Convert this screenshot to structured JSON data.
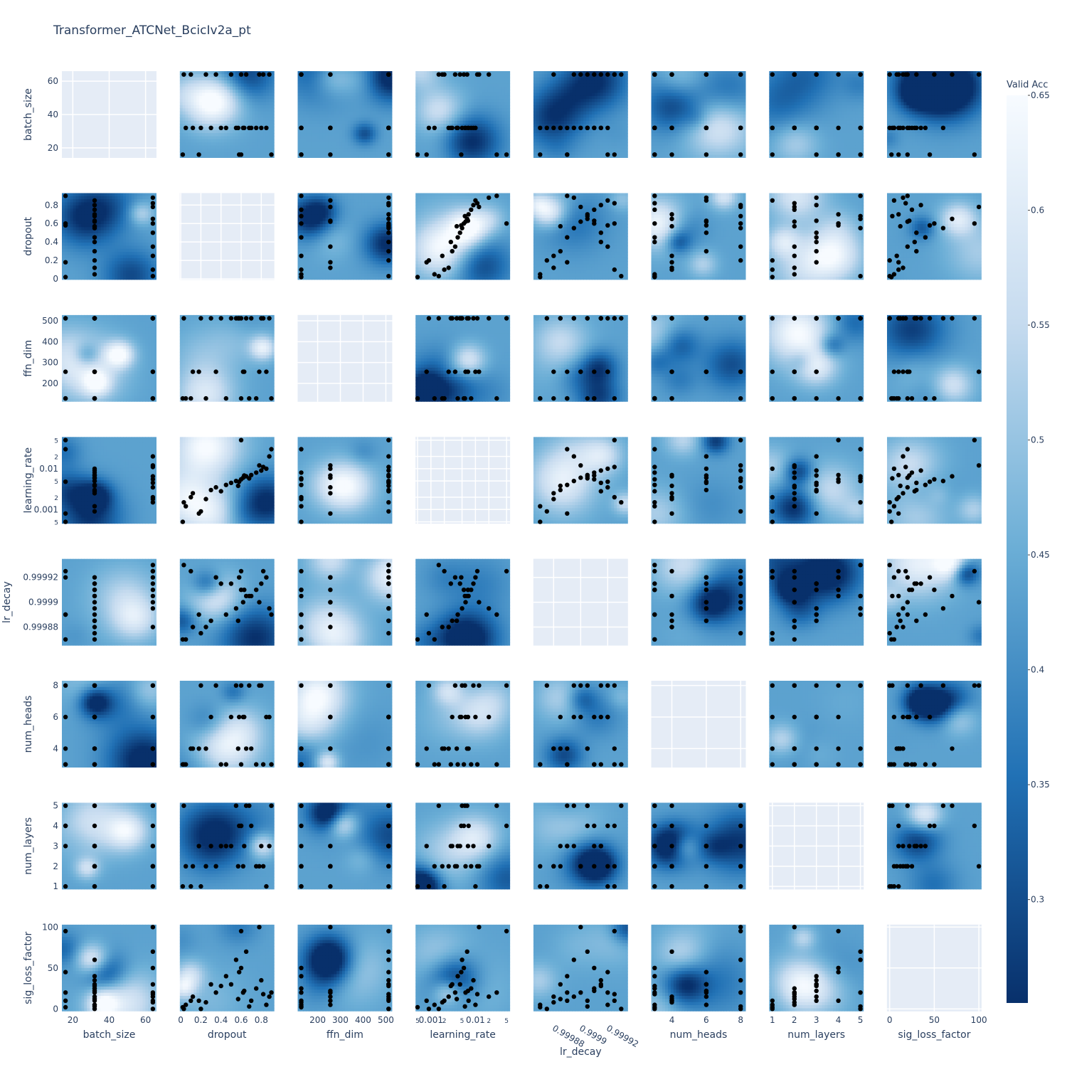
{
  "title": "Transformer_ATCNet_BcicIv2a_pt",
  "colorbar": {
    "title": "Valid Acc",
    "range": [
      0.255,
      0.65
    ],
    "ticks": [
      0.3,
      0.35,
      0.4,
      0.45,
      0.5,
      0.55,
      0.6,
      0.65
    ],
    "colors": [
      "#08306b",
      "#2171b5",
      "#6baed6",
      "#c6dbef",
      "#f7fbff"
    ]
  },
  "chart_data": {
    "type": "contour-matrix",
    "params": [
      "batch_size",
      "dropout",
      "ffn_dim",
      "learning_rate",
      "lr_decay",
      "num_heads",
      "num_layers",
      "sig_loss_factor"
    ],
    "axes": {
      "batch_size": {
        "range": [
          14,
          66
        ],
        "scale": "linear",
        "ticks": [
          20,
          40,
          60
        ],
        "tick_labels": [
          "20",
          "40",
          "60"
        ]
      },
      "dropout": {
        "range": [
          -0.01,
          0.93
        ],
        "scale": "linear",
        "ticks": [
          0,
          0.2,
          0.4,
          0.6,
          0.8
        ],
        "tick_labels": [
          "0",
          "0.2",
          "0.4",
          "0.6",
          "0.8"
        ]
      },
      "ffn_dim": {
        "range": [
          112,
          528
        ],
        "scale": "linear",
        "ticks": [
          200,
          300,
          400,
          500
        ],
        "tick_labels": [
          "200",
          "300",
          "400",
          "500"
        ]
      },
      "learning_rate": {
        "range": [
          0.00045,
          0.06
        ],
        "scale": "log",
        "ticks": [
          0.0005,
          0.001,
          0.002,
          0.005,
          0.01,
          0.02,
          0.05
        ],
        "tick_labels": [
          "5",
          "0.001",
          "2",
          "5",
          "0.01",
          "2",
          "5"
        ],
        "x_tick_labels": [
          "5",
          "0.001",
          "2",
          "5",
          "0.01",
          "2",
          "5"
        ]
      },
      "lr_decay": {
        "range": [
          0.999865,
          0.999935
        ],
        "scale": "linear",
        "ticks": [
          0.99988,
          0.9999,
          0.99992
        ],
        "tick_labels": [
          "0.99988",
          "0.9999",
          "0.99992"
        ]
      },
      "num_heads": {
        "range": [
          2.8,
          8.3
        ],
        "scale": "linear",
        "ticks": [
          4,
          6,
          8
        ],
        "tick_labels": [
          "4",
          "6",
          "8"
        ]
      },
      "num_layers": {
        "range": [
          0.85,
          5.15
        ],
        "scale": "linear",
        "ticks": [
          1,
          2,
          3,
          4,
          5
        ],
        "tick_labels": [
          "1",
          "2",
          "3",
          "4",
          "5"
        ]
      },
      "sig_loss_factor": {
        "range": [
          -3,
          103
        ],
        "scale": "linear",
        "ticks": [
          0,
          50,
          100
        ],
        "tick_labels": [
          "0",
          "50",
          "100"
        ]
      }
    },
    "trials": [
      {
        "batch_size": 16,
        "dropout": 0.02,
        "ffn_dim": 128,
        "learning_rate": 0.0005,
        "lr_decay": 0.99987,
        "num_heads": 3,
        "num_layers": 1,
        "sig_loss_factor": 2
      },
      {
        "batch_size": 16,
        "dropout": 0.18,
        "ffn_dim": 256,
        "learning_rate": 0.0008,
        "lr_decay": 0.99989,
        "num_heads": 4,
        "num_layers": 3,
        "sig_loss_factor": 10
      },
      {
        "batch_size": 16,
        "dropout": 0.6,
        "ffn_dim": 512,
        "learning_rate": 0.05,
        "lr_decay": 0.999925,
        "num_heads": 8,
        "num_layers": 4,
        "sig_loss_factor": 95
      },
      {
        "batch_size": 32,
        "dropout": 0.05,
        "ffn_dim": 128,
        "learning_rate": 0.0012,
        "lr_decay": 0.99987,
        "num_heads": 3,
        "num_layers": 2,
        "sig_loss_factor": 5
      },
      {
        "batch_size": 32,
        "dropout": 0.12,
        "ffn_dim": 256,
        "learning_rate": 0.0025,
        "lr_decay": 0.99988,
        "num_heads": 4,
        "num_layers": 2,
        "sig_loss_factor": 15
      },
      {
        "batch_size": 32,
        "dropout": 0.3,
        "ffn_dim": 512,
        "learning_rate": 0.003,
        "lr_decay": 0.999885,
        "num_heads": 6,
        "num_layers": 3,
        "sig_loss_factor": 30
      },
      {
        "batch_size": 32,
        "dropout": 0.45,
        "ffn_dim": 128,
        "learning_rate": 0.004,
        "lr_decay": 0.99989,
        "num_heads": 3,
        "num_layers": 3,
        "sig_loss_factor": 40
      },
      {
        "batch_size": 32,
        "dropout": 0.55,
        "ffn_dim": 512,
        "learning_rate": 0.005,
        "lr_decay": 0.999895,
        "num_heads": 8,
        "num_layers": 5,
        "sig_loss_factor": 60
      },
      {
        "batch_size": 32,
        "dropout": 0.62,
        "ffn_dim": 256,
        "learning_rate": 0.006,
        "lr_decay": 0.9999,
        "num_heads": 6,
        "num_layers": 2,
        "sig_loss_factor": 20
      },
      {
        "batch_size": 32,
        "dropout": 0.7,
        "ffn_dim": 512,
        "learning_rate": 0.007,
        "lr_decay": 0.999905,
        "num_heads": 4,
        "num_layers": 4,
        "sig_loss_factor": 10
      },
      {
        "batch_size": 32,
        "dropout": 0.75,
        "ffn_dim": 128,
        "learning_rate": 0.008,
        "lr_decay": 0.99991,
        "num_heads": 3,
        "num_layers": 2,
        "sig_loss_factor": 25
      },
      {
        "batch_size": 32,
        "dropout": 0.8,
        "ffn_dim": 512,
        "learning_rate": 0.009,
        "lr_decay": 0.999915,
        "num_heads": 8,
        "num_layers": 3,
        "sig_loss_factor": 35
      },
      {
        "batch_size": 32,
        "dropout": 0.85,
        "ffn_dim": 256,
        "learning_rate": 0.01,
        "lr_decay": 0.99992,
        "num_heads": 6,
        "num_layers": 1,
        "sig_loss_factor": 5
      },
      {
        "batch_size": 64,
        "dropout": 0.03,
        "ffn_dim": 512,
        "learning_rate": 0.0015,
        "lr_decay": 0.99993,
        "num_heads": 3,
        "num_layers": 5,
        "sig_loss_factor": 0
      },
      {
        "batch_size": 64,
        "dropout": 0.1,
        "ffn_dim": 128,
        "learning_rate": 0.002,
        "lr_decay": 0.999925,
        "num_heads": 4,
        "num_layers": 1,
        "sig_loss_factor": 10
      },
      {
        "batch_size": 64,
        "dropout": 0.35,
        "ffn_dim": 256,
        "learning_rate": 0.0035,
        "lr_decay": 0.99992,
        "num_heads": 8,
        "num_layers": 2,
        "sig_loss_factor": 20
      },
      {
        "batch_size": 64,
        "dropout": 0.5,
        "ffn_dim": 512,
        "learning_rate": 0.0045,
        "lr_decay": 0.999915,
        "num_heads": 6,
        "num_layers": 3,
        "sig_loss_factor": 30
      },
      {
        "batch_size": 64,
        "dropout": 0.6,
        "ffn_dim": 128,
        "learning_rate": 0.0055,
        "lr_decay": 0.99991,
        "num_heads": 3,
        "num_layers": 4,
        "sig_loss_factor": 50
      },
      {
        "batch_size": 64,
        "dropout": 0.65,
        "ffn_dim": 512,
        "learning_rate": 0.0065,
        "lr_decay": 0.999905,
        "num_heads": 4,
        "num_layers": 5,
        "sig_loss_factor": 70
      },
      {
        "batch_size": 64,
        "dropout": 0.78,
        "ffn_dim": 256,
        "learning_rate": 0.012,
        "lr_decay": 0.9999,
        "num_heads": 8,
        "num_layers": 2,
        "sig_loss_factor": 100
      },
      {
        "batch_size": 64,
        "dropout": 0.88,
        "ffn_dim": 512,
        "learning_rate": 0.02,
        "lr_decay": 0.999895,
        "num_heads": 6,
        "num_layers": 3,
        "sig_loss_factor": 15
      },
      {
        "batch_size": 16,
        "dropout": 0.9,
        "ffn_dim": 128,
        "learning_rate": 0.03,
        "lr_decay": 0.99989,
        "num_heads": 3,
        "num_layers": 5,
        "sig_loss_factor": 20
      },
      {
        "batch_size": 32,
        "dropout": 0.2,
        "ffn_dim": 512,
        "learning_rate": 0.0009,
        "lr_decay": 0.999875,
        "num_heads": 8,
        "num_layers": 1,
        "sig_loss_factor": 0
      },
      {
        "batch_size": 64,
        "dropout": 0.25,
        "ffn_dim": 128,
        "learning_rate": 0.0018,
        "lr_decay": 0.99988,
        "num_heads": 4,
        "num_layers": 2,
        "sig_loss_factor": 8
      },
      {
        "batch_size": 32,
        "dropout": 0.4,
        "ffn_dim": 512,
        "learning_rate": 0.0028,
        "lr_decay": 0.999915,
        "num_heads": 3,
        "num_layers": 3,
        "sig_loss_factor": 28
      },
      {
        "batch_size": 16,
        "dropout": 0.58,
        "ffn_dim": 512,
        "learning_rate": 0.0048,
        "lr_decay": 0.99992,
        "num_heads": 6,
        "num_layers": 4,
        "sig_loss_factor": 45
      },
      {
        "batch_size": 32,
        "dropout": 0.68,
        "ffn_dim": 128,
        "learning_rate": 0.0058,
        "lr_decay": 0.999905,
        "num_heads": 8,
        "num_layers": 5,
        "sig_loss_factor": 3
      },
      {
        "batch_size": 64,
        "dropout": 0.82,
        "ffn_dim": 512,
        "learning_rate": 0.011,
        "lr_decay": 0.999925,
        "num_heads": 3,
        "num_layers": 2,
        "sig_loss_factor": 18
      },
      {
        "batch_size": 32,
        "dropout": 0.63,
        "ffn_dim": 256,
        "learning_rate": 0.0068,
        "lr_decay": 0.99991,
        "num_heads": 6,
        "num_layers": 3,
        "sig_loss_factor": 22
      },
      {
        "batch_size": 32,
        "dropout": 0.57,
        "ffn_dim": 512,
        "learning_rate": 0.0038,
        "lr_decay": 0.999885,
        "num_heads": 4,
        "num_layers": 2,
        "sig_loss_factor": 12
      }
    ]
  }
}
